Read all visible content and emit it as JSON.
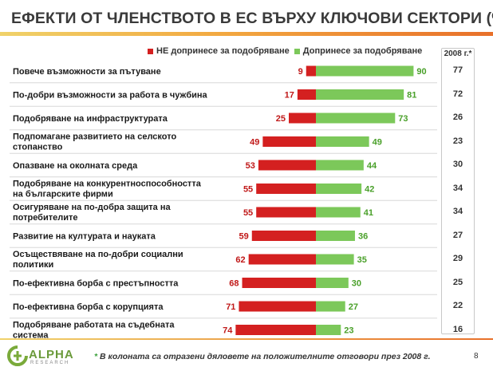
{
  "title": "ЕФЕКТИ ОТ ЧЛЕНСТВОТО В ЕС ВЪРХУ КЛЮЧОВИ СЕКТОРИ (%)",
  "legend": {
    "negative": "НЕ допринесе за подобряване",
    "positive": "Допринесе за подобряване"
  },
  "year_header": "2008 г.*",
  "footnote_star": "*",
  "footnote_text": " В колоната са отразени дяловете на положителните отговори през 2008 г.",
  "page_number": "8",
  "logo": {
    "name": "ALPHA",
    "sub": "RESEARCH"
  },
  "colors": {
    "negative": "#d42020",
    "positive": "#7cc85a",
    "negative_text": "#c01818",
    "positive_text": "#4aa02a"
  },
  "chart_data": {
    "type": "bar",
    "orientation": "horizontal-diverging",
    "title": "ЕФЕКТИ ОТ ЧЛЕНСТВОТО В ЕС ВЪРХУ КЛЮЧОВИ СЕКТОРИ (%)",
    "categories": [
      [
        "Повече възможности за пътуване"
      ],
      [
        "По-добри възможности за работа в чужбина"
      ],
      [
        "Подобряване на инфраструктурата"
      ],
      [
        "Подпомагане развитието на селското",
        "стопанство"
      ],
      [
        "Опазване на околната среда"
      ],
      [
        "Подобряване на конкурентноспособността",
        "на българските фирми"
      ],
      [
        "Осигуряване на по-добра защита на",
        "потребителите"
      ],
      [
        "Развитие на културата и науката"
      ],
      [
        "Осъществяване на по-добри социални",
        "политики"
      ],
      [
        "По-ефективна борба с престъпността"
      ],
      [
        "По-ефективна борба с корупцията"
      ],
      [
        "Подобряване работата на съдебната",
        "система"
      ]
    ],
    "series": [
      {
        "name": "НЕ допринесе за подобряване",
        "values": [
          9,
          17,
          25,
          49,
          53,
          55,
          55,
          59,
          62,
          68,
          71,
          74
        ]
      },
      {
        "name": "Допринесе за подобряване",
        "values": [
          90,
          81,
          73,
          49,
          44,
          42,
          41,
          36,
          35,
          30,
          27,
          23
        ]
      }
    ],
    "year_2008": [
      77,
      72,
      26,
      23,
      30,
      34,
      34,
      27,
      29,
      25,
      22,
      16
    ],
    "legend_position": "top"
  }
}
